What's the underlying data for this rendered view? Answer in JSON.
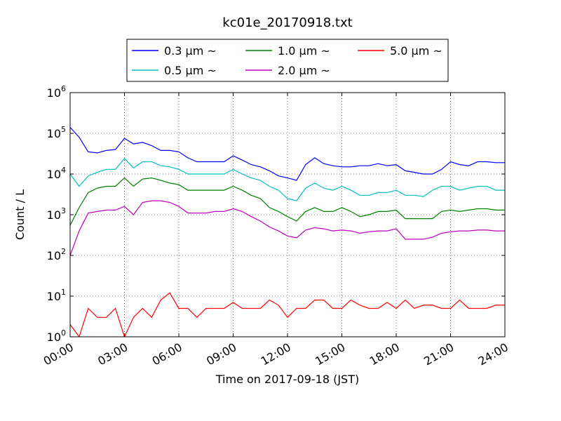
{
  "chart_data": {
    "type": "line",
    "title": "kc01e_20170918.txt",
    "xlabel": "Time on 2017-09-18 (JST)",
    "ylabel": "Count / L",
    "yscale": "log",
    "ylim": [
      1,
      1000000
    ],
    "xlim": [
      "00:00",
      "24:00"
    ],
    "x_ticks": [
      "00:00",
      "03:00",
      "06:00",
      "09:00",
      "12:00",
      "15:00",
      "18:00",
      "21:00",
      "24:00"
    ],
    "y_ticks": [
      {
        "base": "10",
        "exp": "0"
      },
      {
        "base": "10",
        "exp": "1"
      },
      {
        "base": "10",
        "exp": "2"
      },
      {
        "base": "10",
        "exp": "3"
      },
      {
        "base": "10",
        "exp": "4"
      },
      {
        "base": "10",
        "exp": "5"
      },
      {
        "base": "10",
        "exp": "6"
      }
    ],
    "grid": true,
    "legend_position": "top-center",
    "x_hours": [
      0,
      0.5,
      1,
      1.5,
      2,
      2.5,
      3,
      3.5,
      4,
      4.5,
      5,
      5.5,
      6,
      6.5,
      7,
      7.5,
      8,
      8.5,
      9,
      9.5,
      10,
      10.5,
      11,
      11.5,
      12,
      12.5,
      13,
      13.5,
      14,
      14.5,
      15,
      15.5,
      16,
      16.5,
      17,
      17.5,
      18,
      18.5,
      19,
      19.5,
      20,
      20.5,
      21,
      21.5,
      22,
      22.5,
      23,
      23.5,
      24
    ],
    "series": [
      {
        "name": "0.3 μm ~",
        "color": "#0000ff",
        "values": [
          140000,
          80000,
          35000,
          33000,
          38000,
          40000,
          75000,
          55000,
          60000,
          50000,
          38000,
          38000,
          35000,
          25000,
          20000,
          20000,
          20000,
          20000,
          28000,
          22000,
          17000,
          15000,
          12000,
          9000,
          8000,
          7000,
          17000,
          25000,
          18000,
          16000,
          15000,
          15000,
          16000,
          16000,
          18000,
          16000,
          17000,
          12000,
          11000,
          10000,
          10000,
          13000,
          20000,
          17000,
          16000,
          20000,
          20000,
          19000,
          19000
        ]
      },
      {
        "name": "0.5 μm ~",
        "color": "#00bfbf",
        "values": [
          10000,
          5000,
          9000,
          11000,
          13000,
          13000,
          24000,
          14000,
          20000,
          20000,
          16000,
          15000,
          13000,
          10000,
          10000,
          10000,
          10000,
          10000,
          13000,
          10000,
          8000,
          7000,
          5000,
          4000,
          2500,
          2200,
          4500,
          6000,
          4500,
          4000,
          5000,
          4000,
          3000,
          3000,
          3500,
          3500,
          4000,
          3000,
          3000,
          2800,
          4000,
          5000,
          5000,
          4000,
          4500,
          5000,
          5000,
          4000,
          4000
        ]
      },
      {
        "name": "1.0 μm ~",
        "color": "#008000",
        "values": [
          550,
          1500,
          3500,
          4500,
          5000,
          5000,
          8000,
          5000,
          7500,
          8000,
          7000,
          6000,
          5500,
          4000,
          4000,
          4000,
          4000,
          4000,
          5000,
          4000,
          3000,
          2500,
          1500,
          1200,
          900,
          700,
          1200,
          1500,
          1200,
          1200,
          1500,
          1200,
          900,
          1000,
          1200,
          1200,
          1300,
          800,
          800,
          800,
          800,
          1200,
          1300,
          1200,
          1300,
          1400,
          1400,
          1300,
          1300
        ]
      },
      {
        "name": "2.0 μm ~",
        "color": "#bf00bf",
        "values": [
          100,
          400,
          1100,
          1200,
          1300,
          1300,
          1600,
          1000,
          2000,
          2200,
          2200,
          2000,
          1600,
          1100,
          1100,
          1100,
          1200,
          1200,
          1400,
          1200,
          900,
          700,
          500,
          400,
          300,
          270,
          420,
          480,
          450,
          400,
          420,
          400,
          350,
          380,
          400,
          400,
          450,
          250,
          250,
          250,
          280,
          350,
          380,
          400,
          400,
          420,
          420,
          400,
          400
        ]
      },
      {
        "name": "5.0 μm ~",
        "color": "#ff0000",
        "values": [
          2,
          1,
          5,
          3,
          3,
          5,
          1,
          3,
          5,
          3,
          8,
          12,
          5,
          5,
          3,
          5,
          5,
          5,
          7,
          5,
          5,
          5,
          8,
          6,
          3,
          5,
          5,
          8,
          8,
          5,
          5,
          8,
          6,
          5,
          5,
          7,
          5,
          8,
          5,
          6,
          6,
          5,
          5,
          8,
          5,
          5,
          5,
          6,
          6
        ]
      }
    ]
  }
}
